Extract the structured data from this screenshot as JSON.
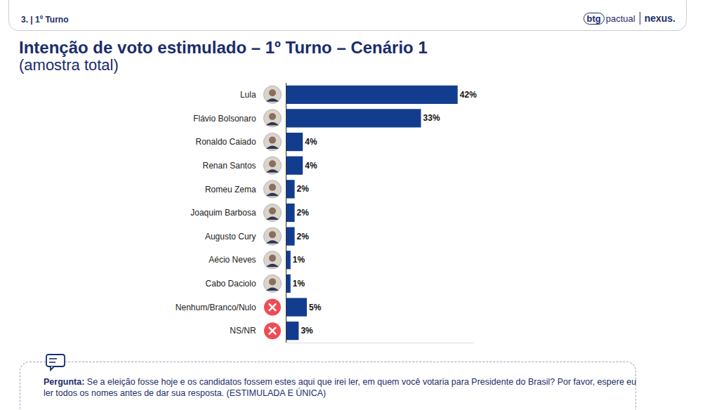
{
  "header": {
    "section": "3. | 1º Turno",
    "logos": [
      "btg",
      "pactual",
      "nexus."
    ]
  },
  "chart_data": {
    "type": "bar",
    "orientation": "horizontal",
    "title": "Intenção de voto estimulado – 1º Turno – Cenário 1",
    "subtitle": "(amostra total)",
    "categories": [
      "Lula",
      "Flávio Bolsonaro",
      "Ronaldo Caiado",
      "Renan Santos",
      "Romeu Zema",
      "Joaquim Barbosa",
      "Augusto Cury",
      "Aécio Neves",
      "Cabo Daciolo",
      "Nenhum/Branco/Nulo",
      "NS/NR"
    ],
    "values": [
      42,
      33,
      4,
      4,
      2,
      2,
      2,
      1,
      1,
      5,
      3
    ],
    "value_labels": [
      "42%",
      "33%",
      "4%",
      "4%",
      "2%",
      "2%",
      "2%",
      "1%",
      "1%",
      "5%",
      "3%"
    ],
    "color": "#123d8e",
    "xlim": [
      0,
      46
    ],
    "xticks": [],
    "data_labels": true,
    "tick_labels": "y",
    "grid": false
  },
  "question": {
    "label": "Pergunta:",
    "text": "Se a eleição fosse hoje e os candidatos fossem estes aqui que irei ler, em quem você votaria para Presidente do Brasil? Por favor, espere eu ler todos os nomes antes de dar sua resposta. (ESTIMULADA E ÚNICA)"
  }
}
